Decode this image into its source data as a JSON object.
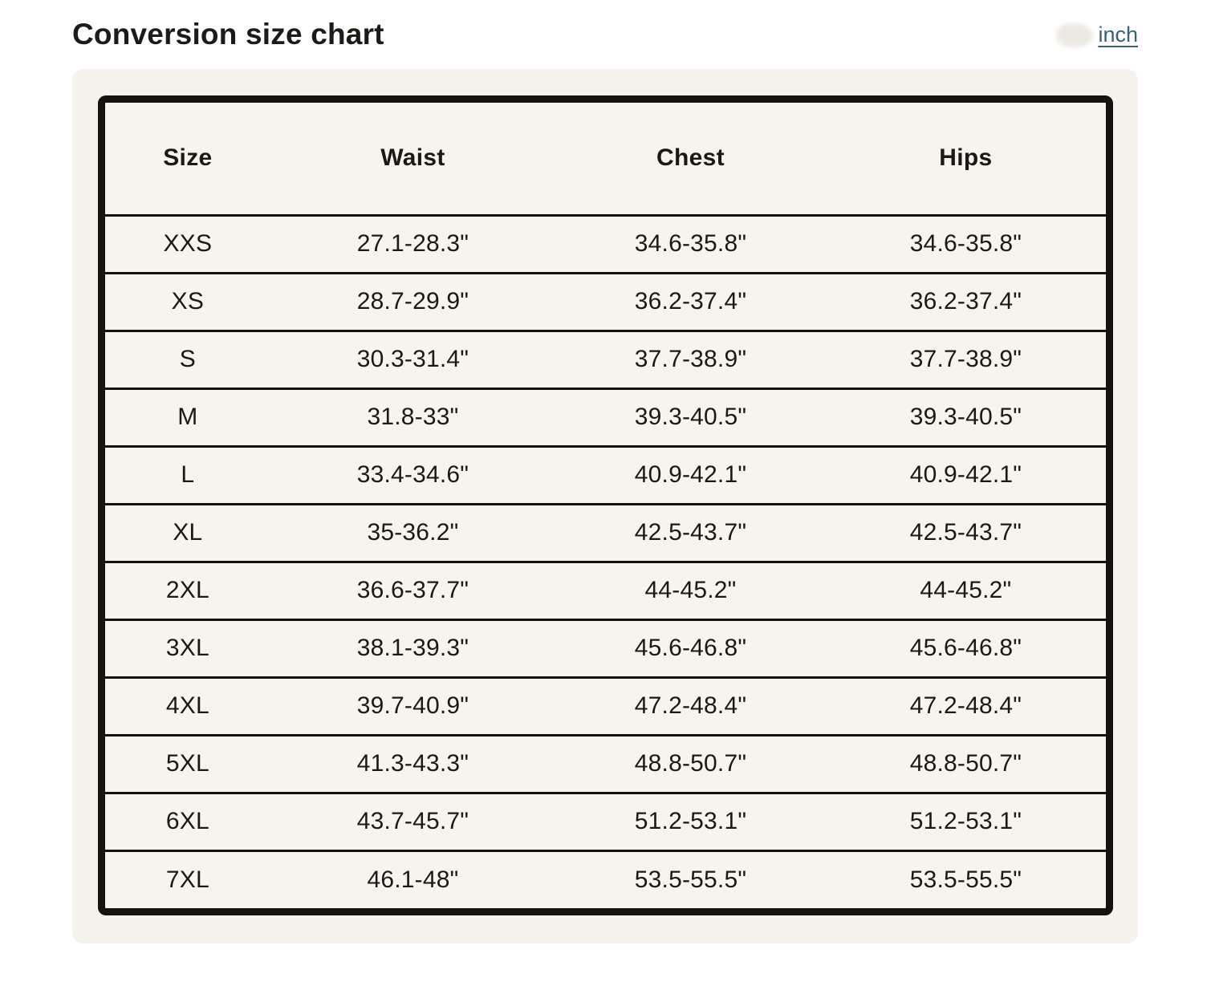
{
  "header": {
    "title": "Conversion size chart",
    "unit_link": "inch"
  },
  "table": {
    "columns": [
      "Size",
      "Waist",
      "Chest",
      "Hips"
    ],
    "rows": [
      [
        "XXS",
        "27.1-28.3\"",
        "34.6-35.8\"",
        "34.6-35.8\""
      ],
      [
        "XS",
        "28.7-29.9\"",
        "36.2-37.4\"",
        "36.2-37.4\""
      ],
      [
        "S",
        "30.3-31.4\"",
        "37.7-38.9\"",
        "37.7-38.9\""
      ],
      [
        "M",
        "31.8-33\"",
        "39.3-40.5\"",
        "39.3-40.5\""
      ],
      [
        "L",
        "33.4-34.6\"",
        "40.9-42.1\"",
        "40.9-42.1\""
      ],
      [
        "XL",
        "35-36.2\"",
        "42.5-43.7\"",
        "42.5-43.7\""
      ],
      [
        "2XL",
        "36.6-37.7\"",
        "44-45.2\"",
        "44-45.2\""
      ],
      [
        "3XL",
        "38.1-39.3\"",
        "45.6-46.8\"",
        "45.6-46.8\""
      ],
      [
        "4XL",
        "39.7-40.9\"",
        "47.2-48.4\"",
        "47.2-48.4\""
      ],
      [
        "5XL",
        "41.3-43.3\"",
        "48.8-50.7\"",
        "48.8-50.7\""
      ],
      [
        "6XL",
        "43.7-45.7\"",
        "51.2-53.1\"",
        "51.2-53.1\""
      ],
      [
        "7XL",
        "46.1-48\"",
        "53.5-55.5\"",
        "53.5-55.5\""
      ]
    ]
  },
  "colors": {
    "page_bg": "#ffffff",
    "panel_bg": "#f5f3ec",
    "table_border": "#15130f",
    "text": "#1a1916",
    "link_accent": "#3a6370"
  }
}
